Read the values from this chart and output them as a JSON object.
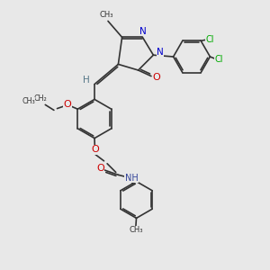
{
  "bg_color": "#e8e8e8",
  "bond_color": "#333333",
  "bond_width": 1.2,
  "figsize": [
    3.0,
    3.0
  ],
  "dpi": 100,
  "xlim": [
    0,
    10
  ],
  "ylim": [
    0,
    10
  ]
}
